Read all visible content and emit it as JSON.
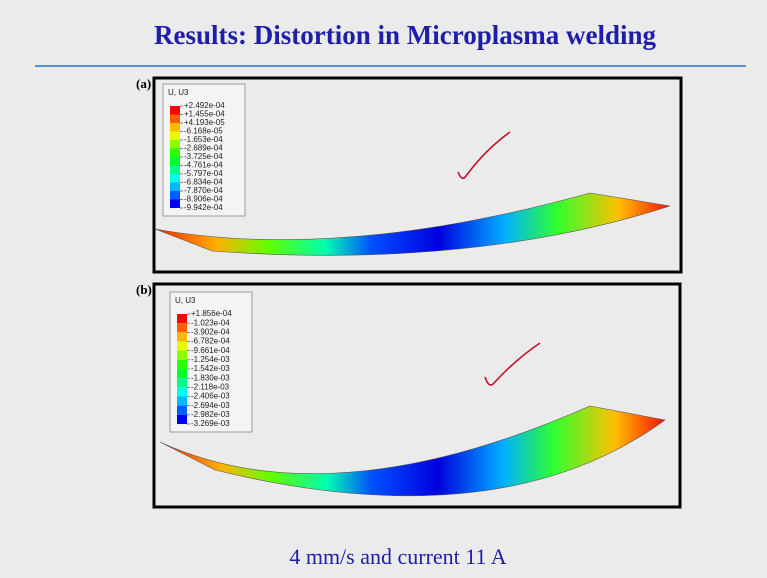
{
  "header": {
    "title": "Results: Distortion in Microplasma welding"
  },
  "panels": [
    {
      "label": "(a)",
      "legend_title": "U, U3",
      "legend_values": [
        "+2.492e-04",
        "+1.455e-04",
        "+4.193e-05",
        "-6.168e-05",
        "-1.653e-04",
        "-2.689e-04",
        "-3.725e-04",
        "-4.761e-04",
        "-5.797e-04",
        "-6.834e-04",
        "-7.870e-04",
        "-8.906e-04",
        "-9.942e-04"
      ]
    },
    {
      "label": "(b)",
      "legend_title": "U, U3",
      "legend_values": [
        "+1.856e-04",
        "-1.023e-04",
        "-3.902e-04",
        "-6.782e-04",
        "-9.661e-04",
        "-1.254e-03",
        "-1.542e-03",
        "-1.830e-03",
        "-2.118e-03",
        "-2.406e-03",
        "-2.694e-03",
        "-2.982e-03",
        "-3.269e-03"
      ]
    }
  ],
  "caption": "4 mm/s and current 11 A"
}
